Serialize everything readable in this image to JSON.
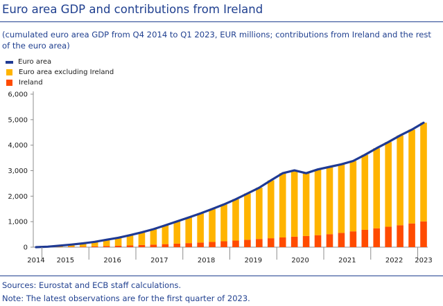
{
  "title": "Euro area GDP and contributions from Ireland",
  "subtitle": "(cumulated euro area GDP from Q4 2014 to Q1 2023, EUR millions; contributions from Ireland and the rest of the euro area)",
  "footnotes": {
    "sources": "Sources: Eurostat and ECB staff calculations.",
    "note": "Note: The latest observations are for the first quarter of 2023."
  },
  "colors": {
    "euro_area": "#1f3a93",
    "excluding_ireland": "#ffb400",
    "ireland": "#ff4b00",
    "text_accent": "#1f3f8f"
  },
  "chart_data": {
    "type": "bar",
    "stacked": true,
    "ylim": [
      0,
      6000
    ],
    "yticks": [
      0,
      1000,
      2000,
      3000,
      4000,
      5000,
      6000
    ],
    "ytick_labels": [
      "0",
      "1,000",
      "2,000",
      "3,000",
      "4,000",
      "5,000",
      "6,000"
    ],
    "year_labels": [
      "2014",
      "2015",
      "2016",
      "2017",
      "2018",
      "2019",
      "2020",
      "2021",
      "2022",
      "2023"
    ],
    "categories": [
      "Q4 2014",
      "Q1 2015",
      "Q2 2015",
      "Q3 2015",
      "Q4 2015",
      "Q1 2016",
      "Q2 2016",
      "Q3 2016",
      "Q4 2016",
      "Q1 2017",
      "Q2 2017",
      "Q3 2017",
      "Q4 2017",
      "Q1 2018",
      "Q2 2018",
      "Q3 2018",
      "Q4 2018",
      "Q1 2019",
      "Q2 2019",
      "Q3 2019",
      "Q4 2019",
      "Q1 2020",
      "Q2 2020",
      "Q3 2020",
      "Q4 2020",
      "Q1 2021",
      "Q2 2021",
      "Q3 2021",
      "Q4 2021",
      "Q1 2022",
      "Q2 2022",
      "Q3 2022",
      "Q4 2022",
      "Q1 2023"
    ],
    "legend": [
      {
        "name": "Euro area",
        "kind": "line",
        "color": "#1f3a93"
      },
      {
        "name": "Euro area excluding Ireland",
        "kind": "bar",
        "color": "#ffb400"
      },
      {
        "name": "Ireland",
        "kind": "bar",
        "color": "#ff4b00"
      }
    ],
    "series": [
      {
        "name": "Ireland",
        "kind": "bar",
        "color": "#ff4b00",
        "values": [
          0,
          3,
          8,
          14,
          22,
          32,
          45,
          58,
          70,
          85,
          100,
          118,
          138,
          158,
          180,
          205,
          232,
          260,
          290,
          320,
          350,
          380,
          410,
          440,
          470,
          510,
          560,
          620,
          680,
          740,
          800,
          860,
          930,
          1010
        ]
      },
      {
        "name": "Euro area excluding Ireland",
        "kind": "bar",
        "color": "#ffb400",
        "values": [
          0,
          17,
          52,
          86,
          128,
          178,
          245,
          312,
          400,
          495,
          605,
          737,
          872,
          1007,
          1145,
          1290,
          1443,
          1620,
          1815,
          2010,
          2270,
          2520,
          2600,
          2460,
          2580,
          2640,
          2690,
          2760,
          2940,
          3140,
          3320,
          3520,
          3680,
          3870
        ]
      },
      {
        "name": "Euro area",
        "kind": "line",
        "color": "#1f3a93",
        "values": [
          0,
          20,
          60,
          100,
          150,
          210,
          290,
          370,
          470,
          580,
          705,
          855,
          1010,
          1165,
          1325,
          1495,
          1675,
          1880,
          2105,
          2330,
          2620,
          2900,
          3010,
          2900,
          3050,
          3150,
          3250,
          3380,
          3620,
          3880,
          4120,
          4380,
          4610,
          4880
        ]
      }
    ]
  }
}
